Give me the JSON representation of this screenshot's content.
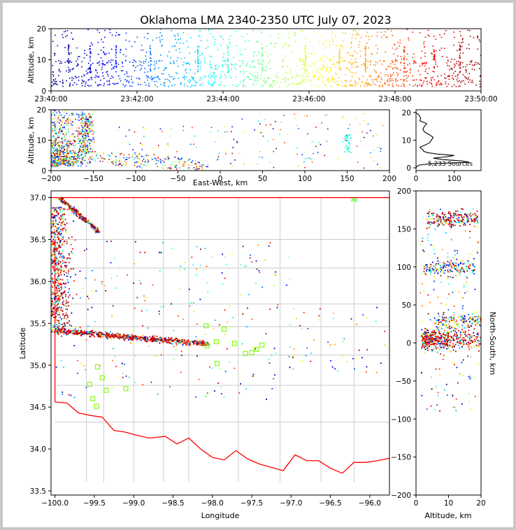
{
  "chart_data": [
    {
      "panel": "time-altitude",
      "type": "scatter",
      "title": "Oklahoma LMA 2340-2350 UTC July 07, 2023",
      "xlabel": "",
      "ylabel": "Altitude, km",
      "x_ticks": [
        "23:40:00",
        "23:42:00",
        "23:44:00",
        "23:46:00",
        "23:48:00",
        "23:50:00"
      ],
      "xlim": [
        "23:40:00",
        "23:50:00"
      ],
      "ylim": [
        0,
        20
      ],
      "y_ticks": [
        0,
        10,
        20
      ],
      "color_by": "time",
      "colormap": "jet",
      "grid": false
    },
    {
      "panel": "eastwest-altitude",
      "type": "scatter",
      "xlabel": "East-West, km",
      "ylabel": "Altitude, km",
      "xlim": [
        -200,
        200
      ],
      "ylim": [
        0,
        20
      ],
      "x_ticks": [
        -200,
        -150,
        -100,
        -50,
        0,
        50,
        100,
        150,
        200
      ],
      "y_ticks": [
        0,
        10,
        20
      ],
      "color_by": "time",
      "grid": false
    },
    {
      "panel": "altitude-histogram",
      "type": "line",
      "annotation": "5,233 Sources",
      "xlim": [
        0,
        170
      ],
      "ylim": [
        -1,
        21
      ],
      "x_ticks": [
        0,
        100
      ],
      "y_ticks": [
        0,
        10,
        20
      ],
      "profile": {
        "altitude_km": [
          0,
          0.5,
          1,
          1.5,
          2,
          2.5,
          3,
          3.5,
          4,
          4.5,
          5,
          5.5,
          6,
          6.5,
          7,
          7.5,
          8,
          9,
          10,
          11,
          12,
          13,
          14,
          15,
          16,
          17,
          18,
          19,
          20
        ],
        "count": [
          0,
          2,
          8,
          40,
          140,
          120,
          70,
          45,
          80,
          100,
          55,
          30,
          20,
          18,
          14,
          10,
          20,
          35,
          40,
          45,
          35,
          22,
          18,
          22,
          28,
          10,
          12,
          8,
          0
        ]
      },
      "line_color": "#000000"
    },
    {
      "panel": "plan-view",
      "type": "scatter",
      "xlabel": "Longitude",
      "ylabel": "Latitude",
      "xlim": [
        -100.05,
        -95.75
      ],
      "ylim": [
        33.45,
        37.08
      ],
      "x_ticks": [
        -100.0,
        -99.5,
        -99.0,
        -98.5,
        -98.0,
        -97.5,
        -97.0,
        -96.5,
        -96.0
      ],
      "x_tick_labels": [
        "−100.0",
        "−99.5",
        "−99.0",
        "−98.5",
        "−98.0",
        "−97.5",
        "−97.0",
        "−96.5",
        "−96.0"
      ],
      "y_ticks": [
        33.5,
        34.0,
        34.5,
        35.0,
        35.5,
        36.0,
        36.5,
        37.0
      ],
      "y_tick_labels": [
        "33.5",
        "34.0",
        "34.5",
        "35.0",
        "35.5",
        "36.0",
        "36.5",
        "37.0"
      ],
      "state_border_color": "#ff0000",
      "county_line_color": "#c8c8c8",
      "station_marker_color": "#7cfc00",
      "stations": [
        [
          -98.08,
          35.47
        ],
        [
          -97.85,
          35.43
        ],
        [
          -97.95,
          35.28
        ],
        [
          -97.72,
          35.26
        ],
        [
          -97.58,
          35.14
        ],
        [
          -97.5,
          35.15
        ],
        [
          -97.44,
          35.19
        ],
        [
          -97.37,
          35.24
        ],
        [
          -97.94,
          35.02
        ],
        [
          -98.07,
          35.23
        ],
        [
          -99.56,
          34.77
        ],
        [
          -99.52,
          34.6
        ],
        [
          -99.46,
          34.98
        ],
        [
          -99.4,
          34.85
        ],
        [
          -99.35,
          34.7
        ],
        [
          -99.1,
          34.72
        ],
        [
          -99.47,
          34.51
        ]
      ]
    },
    {
      "panel": "altitude-northsouth",
      "type": "scatter",
      "xlabel": "Altitude, km",
      "ylabel": "North-South, km",
      "xlim": [
        0,
        20
      ],
      "ylim": [
        -200,
        200
      ],
      "x_ticks": [
        0,
        10,
        20
      ],
      "y_ticks": [
        -200,
        -150,
        -100,
        -50,
        0,
        50,
        100,
        150,
        200
      ],
      "y_tick_labels": [
        "−200",
        "−150",
        "−100",
        "−50",
        "0",
        "50",
        "100",
        "150",
        "200"
      ],
      "color_by": "time"
    }
  ]
}
